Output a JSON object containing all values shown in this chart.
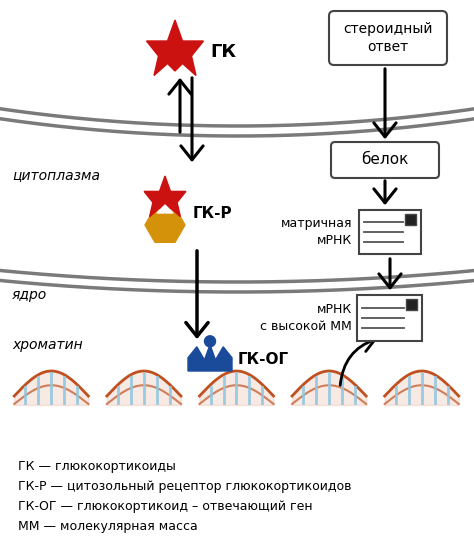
{
  "bg_color": "#ffffff",
  "membrane_color": "#7a7a7a",
  "arrow_color": "#000000",
  "gk_color": "#cc1111",
  "receptor_top_color": "#cc1111",
  "receptor_bottom_color": "#d4920a",
  "gkog_color": "#1a4a9a",
  "chromatin_color_dark": "#c05020",
  "chromatin_color_light": "#90c8e0",
  "box_edge": "#444444",
  "label_cytoplasm": "цитоплазма",
  "label_nucleus": "ядро",
  "label_chromatin": "хроматин",
  "label_gk": "ГК",
  "label_gkr": "ГК-Р",
  "label_gkog": "ГК-ОГ",
  "label_steroid": "стероидный\nответ",
  "label_protein": "белок",
  "label_mrna_matrix": "матричная\nмРНК",
  "label_mrna_high": "мРНК\nс высокой ММ",
  "legend_lines": [
    "ГК — глюкокортикоиды",
    "ГК-Р — цитозольный рецептор глюкокортикоидов",
    "ГК-ОГ — глюкокортикоид – отвечающий ген",
    "ММ — молекулярная масса"
  ],
  "figsize": [
    4.74,
    5.52
  ],
  "dpi": 100
}
